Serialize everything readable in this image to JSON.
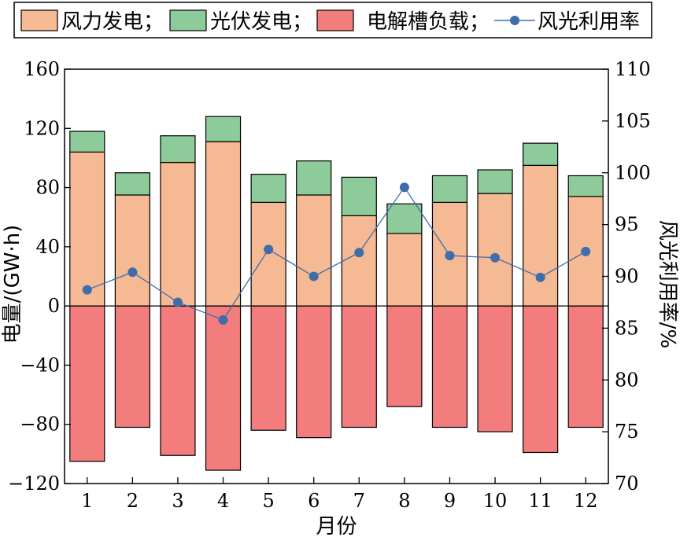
{
  "chart_data": {
    "type": "bar",
    "categories": [
      "1",
      "2",
      "3",
      "4",
      "5",
      "6",
      "7",
      "8",
      "9",
      "10",
      "11",
      "12"
    ],
    "series": [
      {
        "name": "风力发电；",
        "values": [
          104,
          75,
          97,
          111,
          70,
          75,
          61,
          49,
          70,
          76,
          95,
          74
        ],
        "color": "#F5B993",
        "stack": "positive"
      },
      {
        "name": "光伏发电；",
        "values": [
          14,
          15,
          18,
          17,
          19,
          23,
          26,
          20,
          18,
          16,
          15,
          14
        ],
        "color": "#8DCB9A",
        "stack": "positive"
      },
      {
        "name": "电解槽负载；",
        "values": [
          -105,
          -82,
          -101,
          -111,
          -84,
          -89,
          -82,
          -68,
          -82,
          -85,
          -99,
          -82
        ],
        "color": "#F37D7D",
        "stack": "negative"
      },
      {
        "name": "风光利用率",
        "values": [
          88.7,
          90.4,
          87.5,
          85.8,
          92.6,
          90.0,
          92.3,
          98.6,
          92.0,
          91.8,
          89.9,
          92.4
        ],
        "color": "#3E6DAA",
        "axis": "right",
        "kind": "line"
      }
    ],
    "xlabel": "月份",
    "ylabel": "电量/(GW·h)",
    "y2label": "风光利用率/%",
    "ylim": [
      -120,
      160
    ],
    "y2lim": [
      70,
      110
    ],
    "yticks": [
      "160",
      "120",
      "80",
      "40",
      "0",
      "−40",
      "−80",
      "−120"
    ],
    "y2ticks": [
      "110",
      "105",
      "100",
      "95",
      "90",
      "85",
      "80",
      "75",
      "70"
    ],
    "grid": false,
    "legend_position": "top"
  }
}
